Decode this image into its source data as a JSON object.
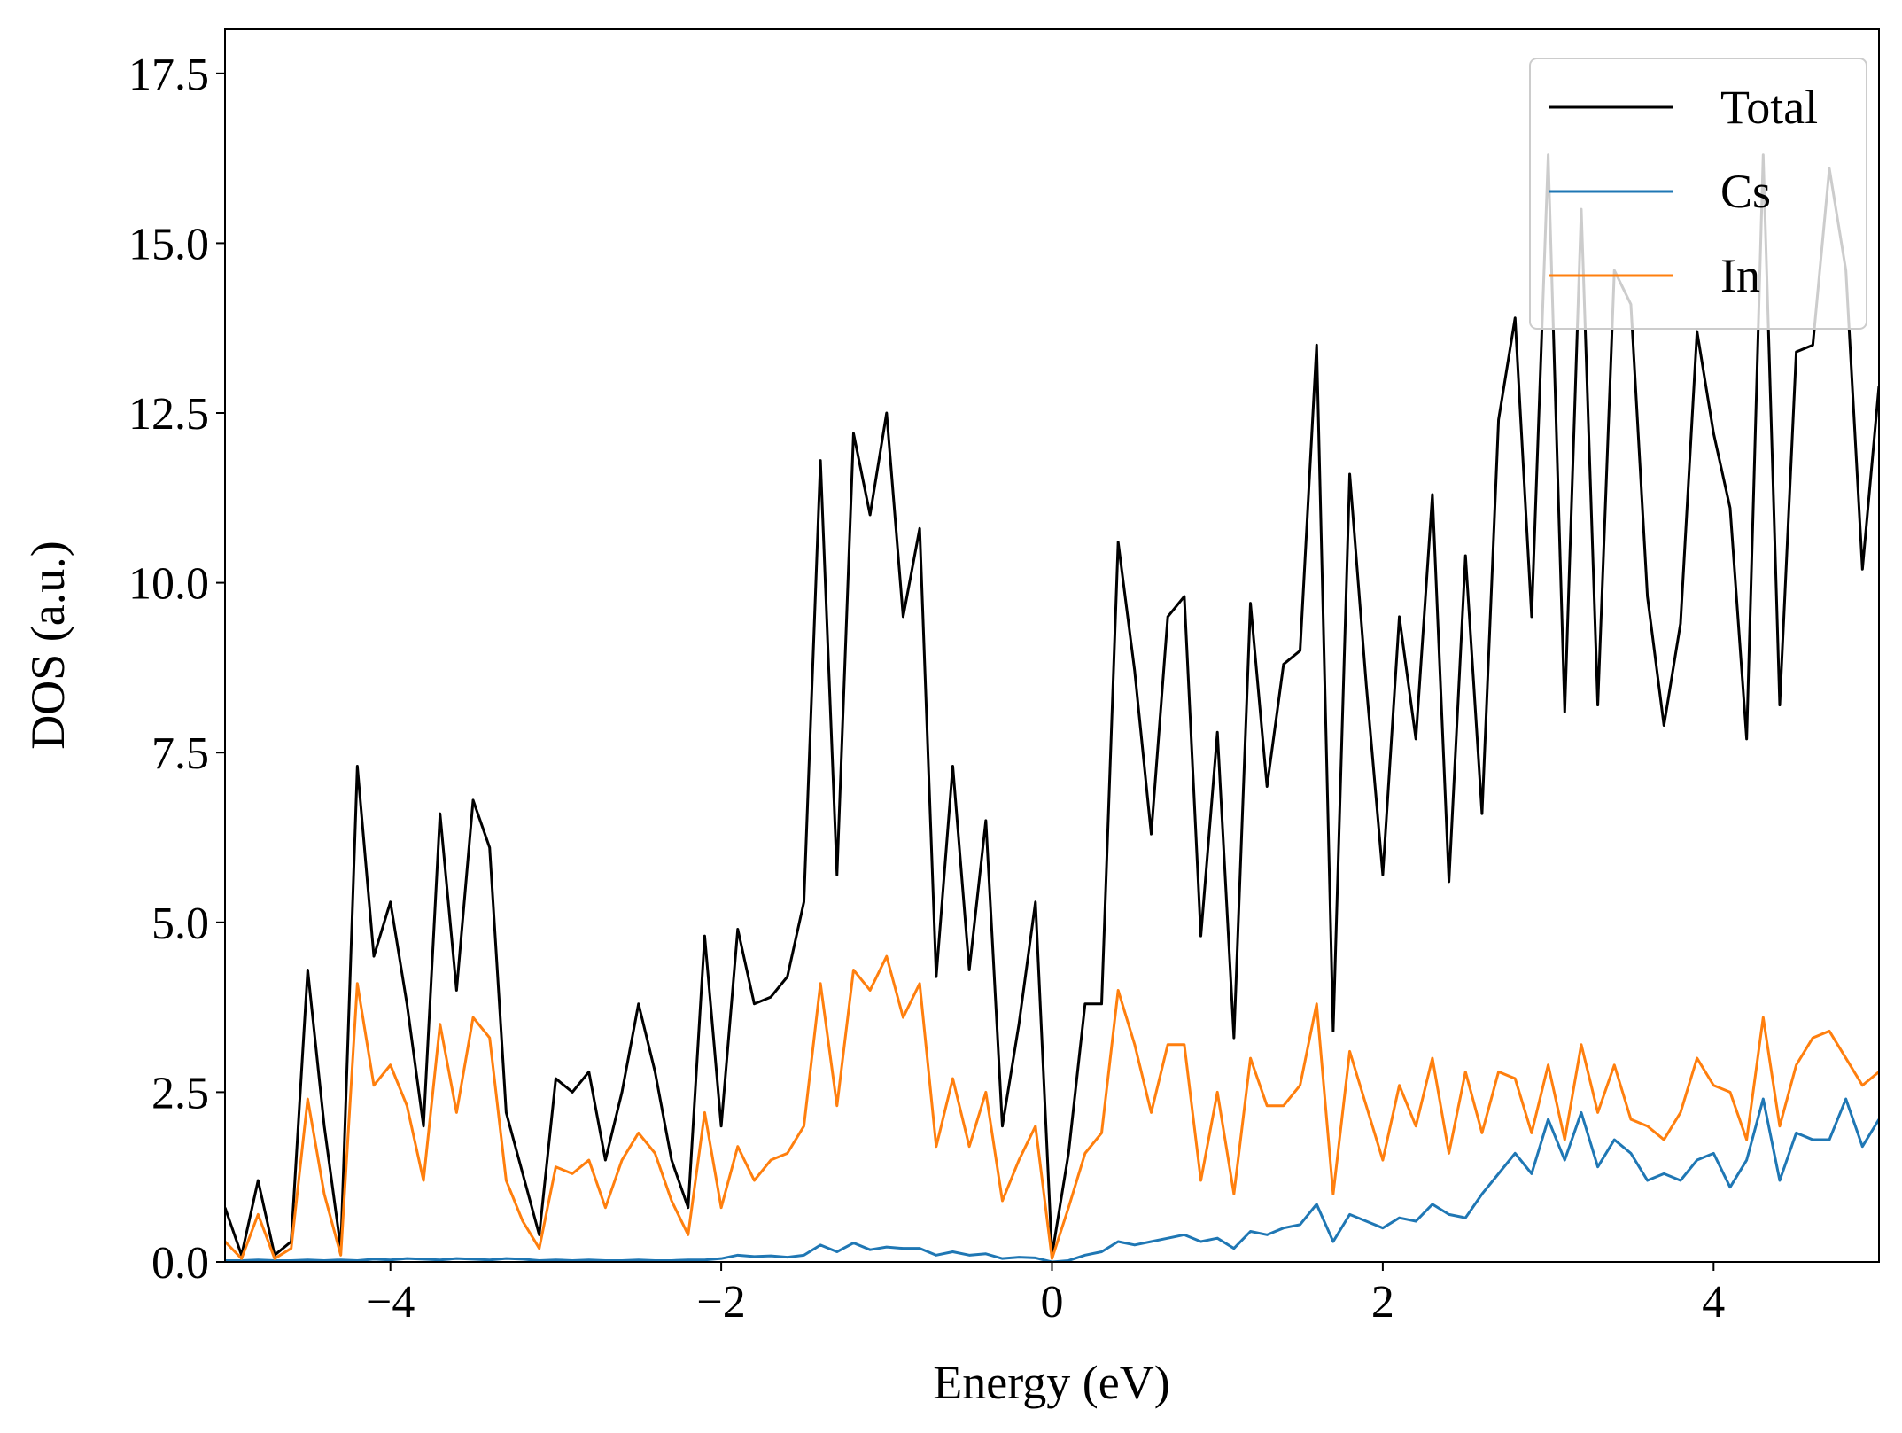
{
  "chart_data": {
    "type": "line",
    "x_label": "Energy (eV)",
    "y_label": "DOS (a.u.)",
    "xlim": [
      -5,
      5
    ],
    "ylim": [
      0,
      18.15
    ],
    "xticks": [
      {
        "value": -4,
        "label": "−4"
      },
      {
        "value": -2,
        "label": "−2"
      },
      0,
      2,
      4
    ],
    "yticks": [
      {
        "value": 0,
        "label": "0.0"
      },
      2.5,
      {
        "value": 5,
        "label": "5.0"
      },
      7.5,
      {
        "value": 10,
        "label": "10.0"
      },
      12.5,
      {
        "value": 15,
        "label": "15.0"
      },
      17.5
    ],
    "legend": "upper right",
    "grid": false,
    "x": [
      -5.0,
      -4.9,
      -4.8,
      -4.7,
      -4.6,
      -4.5,
      -4.4,
      -4.3,
      -4.2,
      -4.1,
      -4.0,
      -3.9,
      -3.8,
      -3.7,
      -3.6,
      -3.5,
      -3.4,
      -3.3,
      -3.2,
      -3.1,
      -3.0,
      -2.9,
      -2.8,
      -2.7,
      -2.6,
      -2.5,
      -2.4,
      -2.3,
      -2.2,
      -2.1,
      -2.0,
      -1.9,
      -1.8,
      -1.7,
      -1.6,
      -1.5,
      -1.4,
      -1.3,
      -1.2,
      -1.1,
      -1.0,
      -0.9,
      -0.8,
      -0.7,
      -0.6,
      -0.5,
      -0.4,
      -0.3,
      -0.2,
      -0.1,
      0.0,
      0.1,
      0.2,
      0.3,
      0.4,
      0.5,
      0.6,
      0.7,
      0.8,
      0.9,
      1.0,
      1.1,
      1.2,
      1.3,
      1.4,
      1.5,
      1.6,
      1.7,
      1.8,
      1.9,
      2.0,
      2.1,
      2.2,
      2.3,
      2.4,
      2.5,
      2.6,
      2.7,
      2.8,
      2.9,
      3.0,
      3.1,
      3.2,
      3.3,
      3.4,
      3.5,
      3.6,
      3.7,
      3.8,
      3.9,
      4.0,
      4.1,
      4.2,
      4.3,
      4.4,
      4.5,
      4.6,
      4.7,
      4.8,
      4.9,
      5.0
    ],
    "series": [
      {
        "name": "Total",
        "color": "#000000",
        "values": [
          0.8,
          0.1,
          1.2,
          0.1,
          0.3,
          4.3,
          2.0,
          0.2,
          7.3,
          4.5,
          5.3,
          3.8,
          2.0,
          6.6,
          4.0,
          6.8,
          6.1,
          2.2,
          1.3,
          0.4,
          2.7,
          2.5,
          2.8,
          1.5,
          2.5,
          3.8,
          2.8,
          1.5,
          0.8,
          4.8,
          2.0,
          4.9,
          3.8,
          3.9,
          4.2,
          5.3,
          11.8,
          5.7,
          12.2,
          11.0,
          12.5,
          9.5,
          10.8,
          4.2,
          7.3,
          4.3,
          6.5,
          2.0,
          3.5,
          5.3,
          0.1,
          1.6,
          3.8,
          3.8,
          10.6,
          8.7,
          6.3,
          9.5,
          9.8,
          4.8,
          7.8,
          3.3,
          9.7,
          7.0,
          8.8,
          9.0,
          13.5,
          3.4,
          11.6,
          8.5,
          5.7,
          9.5,
          7.7,
          11.3,
          5.6,
          10.4,
          6.6,
          12.4,
          13.9,
          9.5,
          16.3,
          8.1,
          15.5,
          8.2,
          14.6,
          14.1,
          9.8,
          7.9,
          9.4,
          13.7,
          12.2,
          11.1,
          7.7,
          16.3,
          8.2,
          13.4,
          13.5,
          16.1,
          14.6,
          10.2,
          12.9
        ]
      },
      {
        "name": "Cs",
        "color": "#1f77b4",
        "values": [
          0.02,
          0.02,
          0.03,
          0.02,
          0.02,
          0.03,
          0.02,
          0.03,
          0.02,
          0.04,
          0.03,
          0.05,
          0.04,
          0.03,
          0.05,
          0.04,
          0.03,
          0.05,
          0.04,
          0.02,
          0.03,
          0.02,
          0.03,
          0.02,
          0.02,
          0.03,
          0.02,
          0.02,
          0.03,
          0.03,
          0.05,
          0.1,
          0.08,
          0.09,
          0.07,
          0.1,
          0.25,
          0.15,
          0.28,
          0.18,
          0.22,
          0.2,
          0.2,
          0.1,
          0.15,
          0.1,
          0.12,
          0.05,
          0.07,
          0.06,
          0.0,
          0.02,
          0.1,
          0.15,
          0.3,
          0.25,
          0.3,
          0.35,
          0.4,
          0.3,
          0.35,
          0.2,
          0.45,
          0.4,
          0.5,
          0.55,
          0.85,
          0.3,
          0.7,
          0.6,
          0.5,
          0.65,
          0.6,
          0.85,
          0.7,
          0.65,
          1.0,
          1.3,
          1.6,
          1.3,
          2.1,
          1.5,
          2.2,
          1.4,
          1.8,
          1.6,
          1.2,
          1.3,
          1.2,
          1.5,
          1.6,
          1.1,
          1.5,
          2.4,
          1.2,
          1.9,
          1.8,
          1.8,
          2.4,
          1.7,
          2.1
        ]
      },
      {
        "name": "In",
        "color": "#ff7f0e",
        "values": [
          0.3,
          0.05,
          0.7,
          0.05,
          0.2,
          2.4,
          1.0,
          0.1,
          4.1,
          2.6,
          2.9,
          2.3,
          1.2,
          3.5,
          2.2,
          3.6,
          3.3,
          1.2,
          0.6,
          0.2,
          1.4,
          1.3,
          1.5,
          0.8,
          1.5,
          1.9,
          1.6,
          0.9,
          0.4,
          2.2,
          0.8,
          1.7,
          1.2,
          1.5,
          1.6,
          2.0,
          4.1,
          2.3,
          4.3,
          4.0,
          4.5,
          3.6,
          4.1,
          1.7,
          2.7,
          1.7,
          2.5,
          0.9,
          1.5,
          2.0,
          0.05,
          0.8,
          1.6,
          1.9,
          4.0,
          3.2,
          2.2,
          3.2,
          3.2,
          1.2,
          2.5,
          1.0,
          3.0,
          2.3,
          2.3,
          2.6,
          3.8,
          1.0,
          3.1,
          2.3,
          1.5,
          2.6,
          2.0,
          3.0,
          1.6,
          2.8,
          1.9,
          2.8,
          2.7,
          1.9,
          2.9,
          1.8,
          3.2,
          2.2,
          2.9,
          2.1,
          2.0,
          1.8,
          2.2,
          3.0,
          2.6,
          2.5,
          1.8,
          3.6,
          2.0,
          2.9,
          3.3,
          3.4,
          3.0,
          2.6,
          2.8
        ]
      }
    ]
  }
}
